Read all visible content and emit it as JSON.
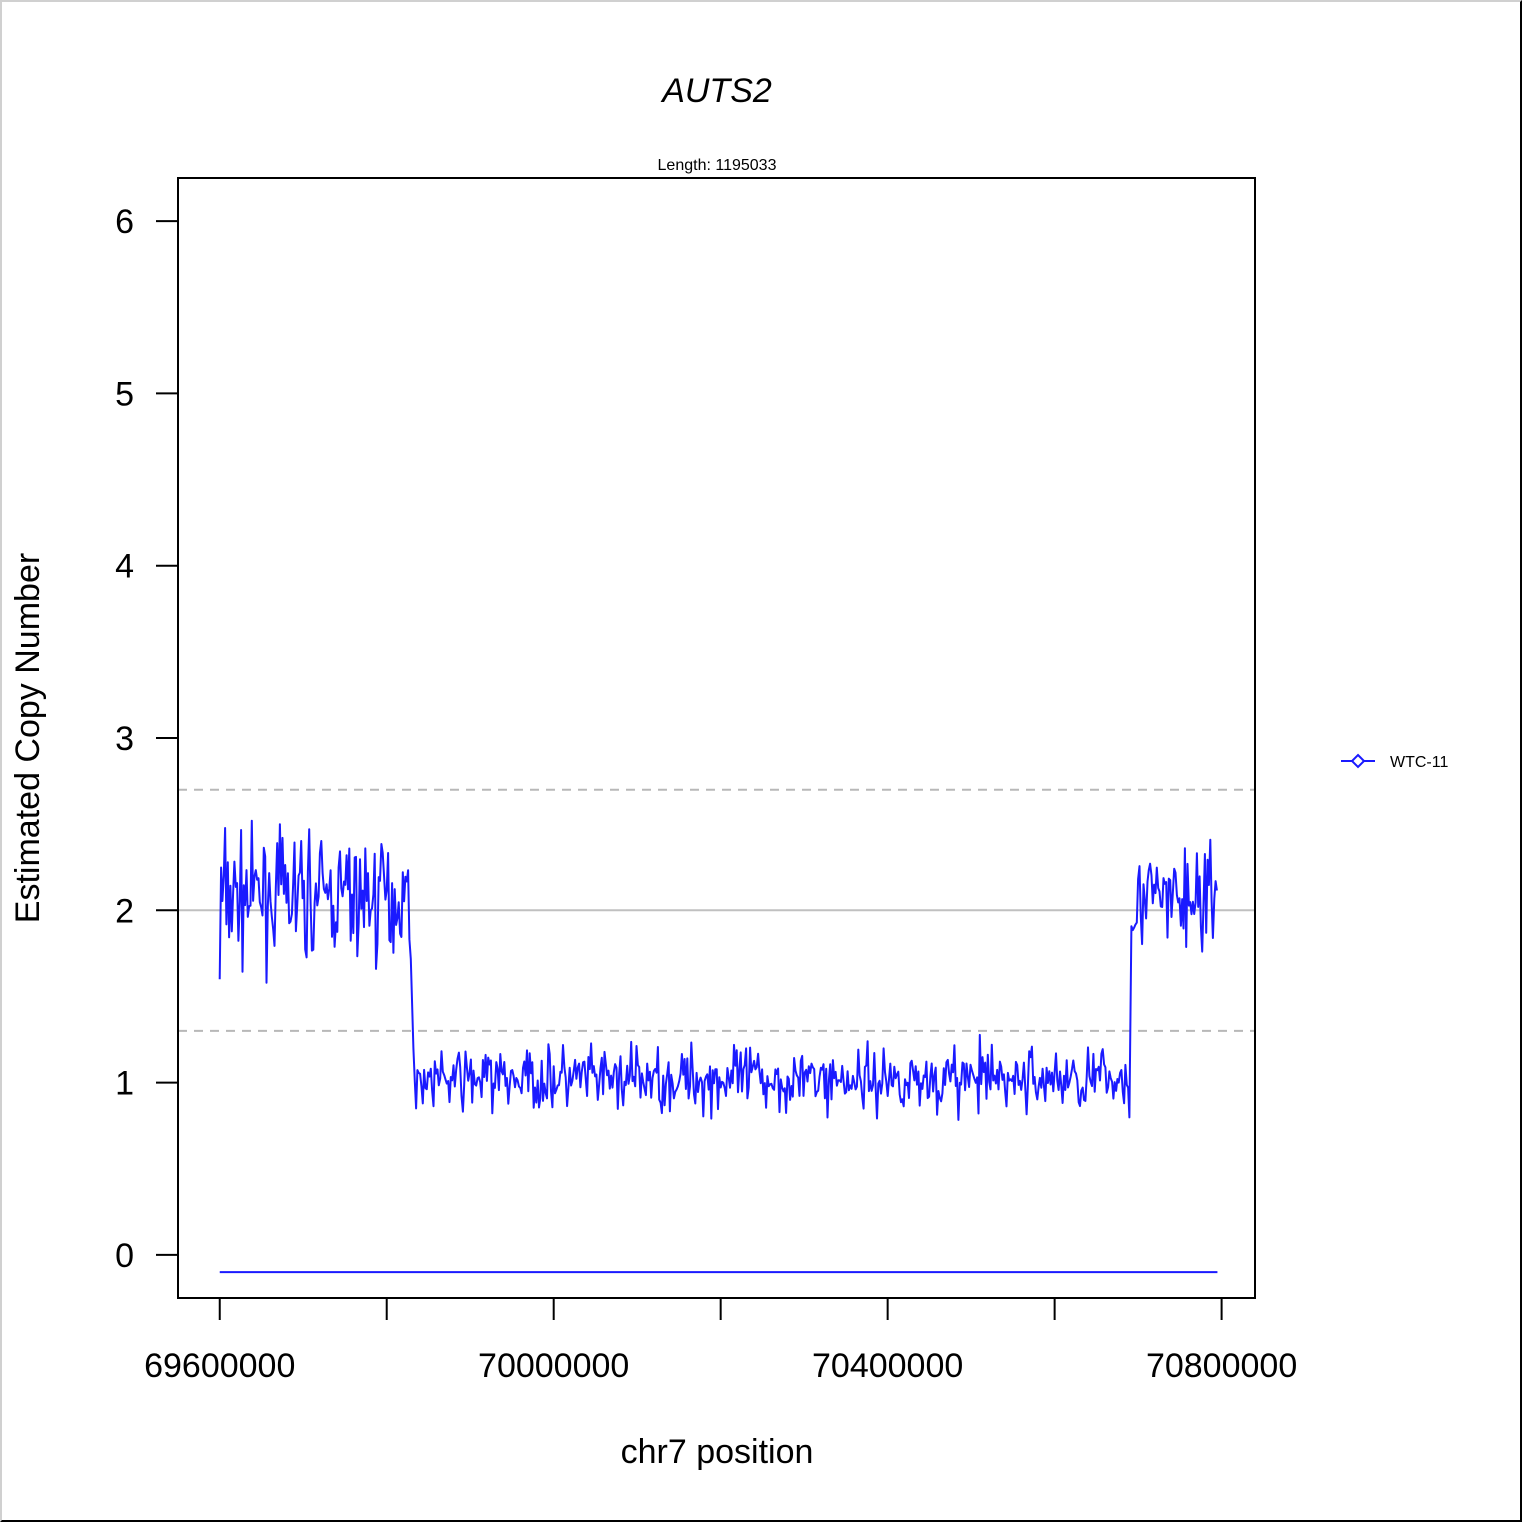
{
  "chart_data": {
    "type": "line",
    "title": "AUTS2",
    "subtitle": "Length: 1195033",
    "xlabel": "chr7 position",
    "ylabel": "Estimated Copy Number",
    "xlim": [
      69550000,
      70840000
    ],
    "ylim": [
      -0.25,
      6.25
    ],
    "x_ticks": [
      69600000,
      69800000,
      70000000,
      70200000,
      70400000,
      70600000,
      70800000
    ],
    "x_tick_labels": [
      "69600000",
      "70000000",
      "70400000",
      "70800000"
    ],
    "x_tick_label_values": [
      69600000,
      70000000,
      70400000,
      70800000
    ],
    "y_ticks": [
      0,
      1,
      2,
      3,
      4,
      5,
      6
    ],
    "y_tick_labels": [
      "0",
      "1",
      "2",
      "3",
      "4",
      "5",
      "6"
    ],
    "reference_lines": [
      {
        "y": 2.0,
        "style": "solid",
        "color": "#c0c0c0"
      },
      {
        "y": 2.7,
        "style": "dashed",
        "color": "#b8b8b8"
      },
      {
        "y": 1.3,
        "style": "dashed",
        "color": "#b8b8b8"
      }
    ],
    "series": [
      {
        "name": "WTC-11",
        "color": "#1a1aff",
        "segments": [
          {
            "x_start": 69600000,
            "x_end": 69830000,
            "mean": 2.08,
            "noise": 0.17,
            "min": 1.58,
            "max": 2.52
          },
          {
            "x_start": 69832000,
            "x_end": 70690000,
            "mean": 1.02,
            "noise": 0.09,
            "min": 0.69,
            "max": 1.33
          },
          {
            "x_start": 70692000,
            "x_end": 70795000,
            "mean": 2.06,
            "noise": 0.15,
            "min": 1.37,
            "max": 2.41
          }
        ],
        "first_value": 1.6,
        "baseline": {
          "x_start": 69600000,
          "x_end": 70795000,
          "y": -0.1
        }
      }
    ],
    "legend": {
      "placement": "right",
      "entries": [
        "WTC-11"
      ]
    }
  }
}
